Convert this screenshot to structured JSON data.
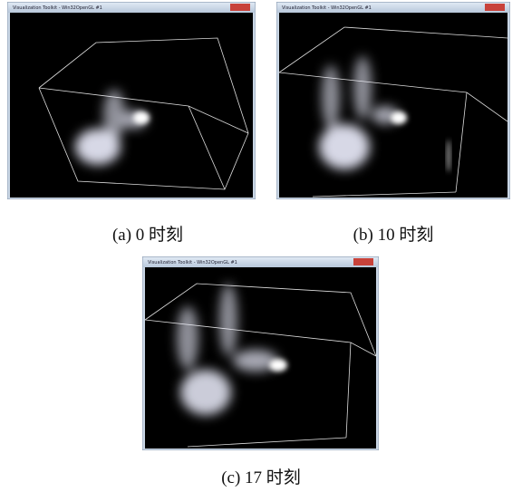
{
  "panels": [
    {
      "window_title": "Visualization Toolkit - Win32OpenGL #1",
      "caption": "(a) 0 时刻"
    },
    {
      "window_title": "Visualization Toolkit - Win32OpenGL #1",
      "caption": "(b) 10 时刻"
    },
    {
      "window_title": "Visualization Toolkit - Win32OpenGL #1",
      "caption": "(c) 17 时刻"
    }
  ]
}
